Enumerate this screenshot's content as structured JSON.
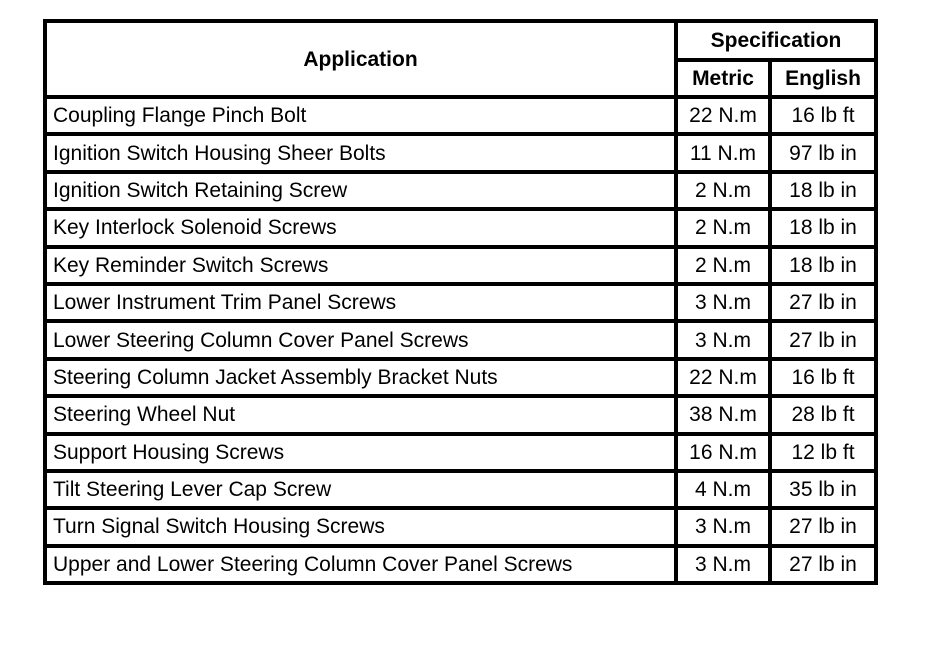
{
  "table": {
    "headers": {
      "application": "Application",
      "specification": "Specification",
      "metric": "Metric",
      "english": "English"
    },
    "rows": [
      {
        "application": "Coupling Flange Pinch Bolt",
        "metric": "22 N.m",
        "english": "16 lb ft"
      },
      {
        "application": "Ignition Switch Housing Sheer Bolts",
        "metric": "11 N.m",
        "english": "97 lb in"
      },
      {
        "application": "Ignition Switch Retaining Screw",
        "metric": "2 N.m",
        "english": "18 lb in"
      },
      {
        "application": "Key Interlock Solenoid Screws",
        "metric": "2 N.m",
        "english": "18 lb in"
      },
      {
        "application": "Key Reminder Switch Screws",
        "metric": "2 N.m",
        "english": "18 lb in"
      },
      {
        "application": "Lower Instrument Trim Panel Screws",
        "metric": "3 N.m",
        "english": "27 lb in"
      },
      {
        "application": "Lower Steering Column Cover Panel Screws",
        "metric": "3 N.m",
        "english": "27 lb in"
      },
      {
        "application": "Steering Column Jacket Assembly Bracket Nuts",
        "metric": "22 N.m",
        "english": "16 lb ft"
      },
      {
        "application": "Steering Wheel Nut",
        "metric": "38 N.m",
        "english": "28 lb ft"
      },
      {
        "application": "Support Housing Screws",
        "metric": "16 N.m",
        "english": "12 lb ft"
      },
      {
        "application": "Tilt Steering Lever Cap Screw",
        "metric": "4 N.m",
        "english": "35 lb in"
      },
      {
        "application": "Turn Signal Switch Housing Screws",
        "metric": "3 N.m",
        "english": "27 lb in"
      },
      {
        "application": "Upper and Lower Steering Column Cover Panel Screws",
        "metric": "3 N.m",
        "english": "27 lb in"
      }
    ]
  }
}
